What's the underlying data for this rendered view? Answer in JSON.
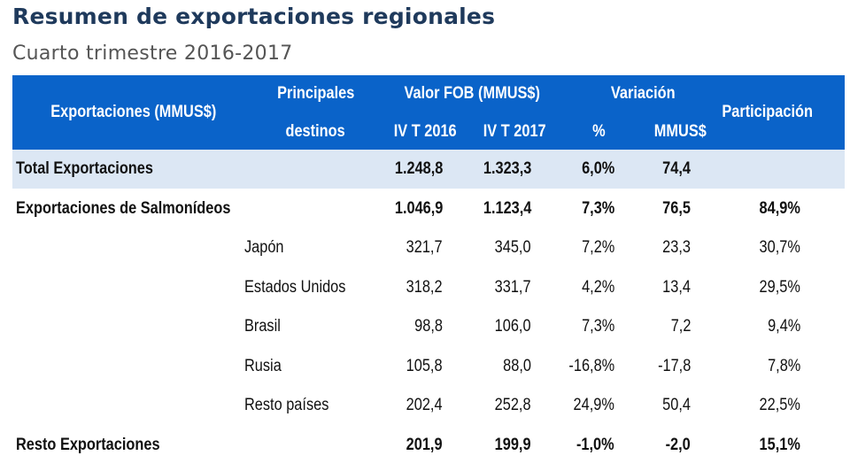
{
  "title": "Resumen de exportaciones regionales",
  "subtitle": "Cuarto trimestre 2016-2017",
  "header": {
    "col_exportaciones": "Exportaciones (MMUS$)",
    "col_destinos_1": "Principales",
    "col_destinos_2": "destinos",
    "col_valor_fob": "Valor FOB (MMUS$)",
    "col_iv2016": "IV T 2016",
    "col_iv2017": "IV T 2017",
    "col_variacion": "Variación",
    "col_pct": "%",
    "col_mmus": "MMUS$",
    "col_participacion": "Participación"
  },
  "rows": [
    {
      "label": "Total Exportaciones",
      "dest": "",
      "v2016": "1.248,8",
      "v2017": "1.323,3",
      "pct": "6,0%",
      "mmus": "74,4",
      "part": ""
    },
    {
      "label": "Exportaciones de Salmonídeos",
      "dest": "",
      "v2016": "1.046,9",
      "v2017": "1.123,4",
      "pct": "7,3%",
      "mmus": "76,5",
      "part": "84,9%"
    },
    {
      "label": "",
      "dest": "Japón",
      "v2016": "321,7",
      "v2017": "345,0",
      "pct": "7,2%",
      "mmus": "23,3",
      "part": "30,7%"
    },
    {
      "label": "",
      "dest": "Estados Unidos",
      "v2016": "318,2",
      "v2017": "331,7",
      "pct": "4,2%",
      "mmus": "13,4",
      "part": "29,5%"
    },
    {
      "label": "",
      "dest": "Brasil",
      "v2016": "98,8",
      "v2017": "106,0",
      "pct": "7,3%",
      "mmus": "7,2",
      "part": "9,4%"
    },
    {
      "label": "",
      "dest": "Rusia",
      "v2016": "105,8",
      "v2017": "88,0",
      "pct": "-16,8%",
      "mmus": "-17,8",
      "part": "7,8%"
    },
    {
      "label": "",
      "dest": "Resto países",
      "v2016": "202,4",
      "v2017": "252,8",
      "pct": "24,9%",
      "mmus": "50,4",
      "part": "22,5%"
    },
    {
      "label": "Resto Exportaciones",
      "dest": "",
      "v2016": "201,9",
      "v2017": "199,9",
      "pct": "-1,0%",
      "mmus": "-2,0",
      "part": "15,1%"
    }
  ]
}
